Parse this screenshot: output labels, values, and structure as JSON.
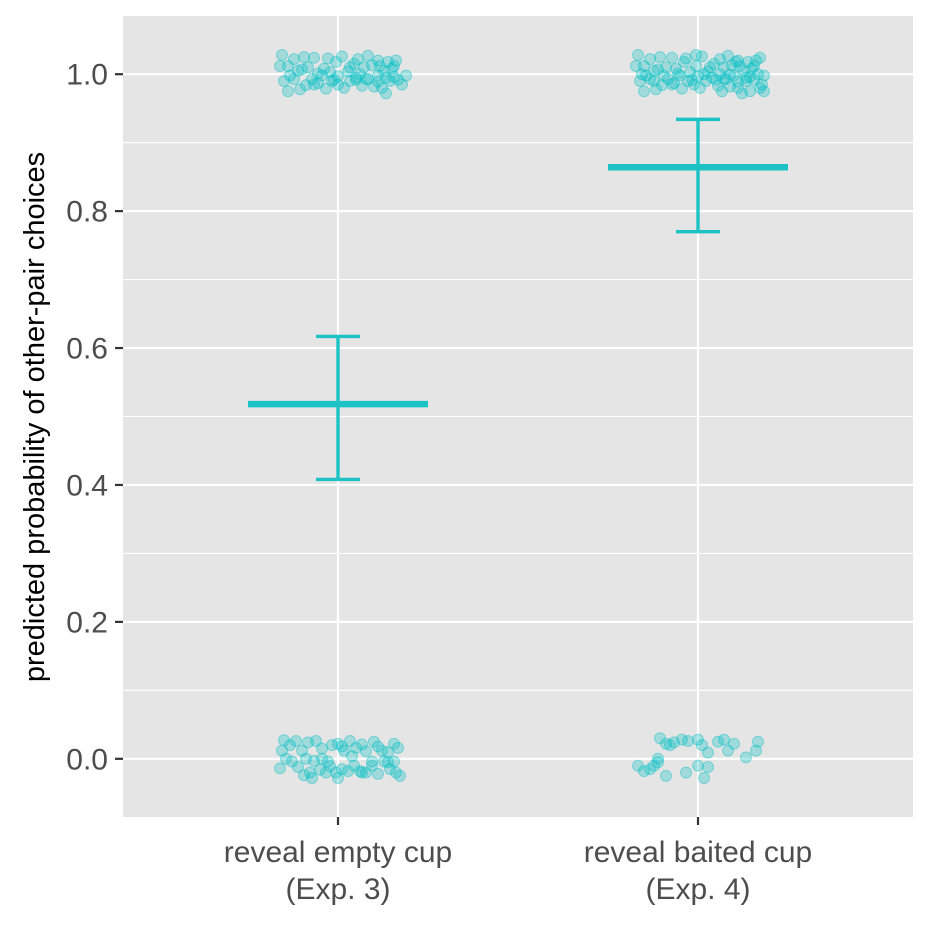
{
  "chart_data": {
    "type": "scatter",
    "title": "",
    "xlabel": "",
    "ylabel": "predicted probability of other-pair choices",
    "categories": [
      [
        "reveal empty cup",
        "(Exp. 3)"
      ],
      [
        "reveal baited cup",
        "(Exp. 4)"
      ]
    ],
    "ylim": [
      -0.085,
      1.085
    ],
    "yticks": [
      0.0,
      0.2,
      0.4,
      0.6,
      0.8,
      1.0
    ],
    "ytick_labels": [
      "0.0",
      "0.2",
      "0.4",
      "0.6",
      "0.8",
      "1.0"
    ],
    "grid": true,
    "legend": "none",
    "colors": {
      "point": "#00bfc4",
      "summary": "#1cc2c4",
      "panel": "#e5e5e5",
      "grid": "#ffffff"
    },
    "summary": [
      {
        "category": 0,
        "mean": 0.518,
        "lower": 0.408,
        "upper": 0.617
      },
      {
        "category": 1,
        "mean": 0.864,
        "lower": 0.77,
        "upper": 0.934
      }
    ],
    "points": [
      {
        "category": 0,
        "ones": [
          [
            -0.28,
            1.028
          ],
          [
            -0.25,
            1.012
          ],
          [
            -0.22,
            1.022
          ],
          [
            -0.2,
            1.005
          ],
          [
            -0.17,
            1.025
          ],
          [
            -0.15,
            1.01
          ],
          [
            -0.12,
            1.024
          ],
          [
            -0.1,
            1.001
          ],
          [
            -0.07,
            1.008
          ],
          [
            -0.04,
            1.003
          ],
          [
            -0.01,
            1.018
          ],
          [
            0.02,
            1.026
          ],
          [
            0.05,
            1.004
          ],
          [
            0.08,
            1.015
          ],
          [
            0.1,
            1.022
          ],
          [
            0.13,
            1.01
          ],
          [
            0.15,
            1.027
          ],
          [
            0.17,
            1.013
          ],
          [
            0.2,
            1.02
          ],
          [
            0.23,
            1.005
          ],
          [
            0.25,
            1.018
          ],
          [
            0.27,
            1.008
          ],
          [
            0.29,
            1.02
          ],
          [
            -0.27,
            0.99
          ],
          [
            -0.25,
            0.975
          ],
          [
            -0.22,
            0.993
          ],
          [
            -0.19,
            0.978
          ],
          [
            -0.16,
            0.984
          ],
          [
            -0.13,
            0.993
          ],
          [
            -0.1,
            0.987
          ],
          [
            -0.06,
            0.979
          ],
          [
            -0.03,
            0.99
          ],
          [
            0.0,
            0.985
          ],
          [
            0.03,
            0.98
          ],
          [
            0.06,
            0.99
          ],
          [
            0.09,
            0.995
          ],
          [
            0.12,
            0.983
          ],
          [
            0.15,
            0.993
          ],
          [
            0.18,
            0.982
          ],
          [
            0.2,
            0.998
          ],
          [
            0.22,
            0.98
          ],
          [
            0.24,
            0.972
          ],
          [
            0.26,
            0.99
          ],
          [
            0.28,
            0.996
          ],
          [
            0.3,
            0.992
          ],
          [
            -0.24,
            0.998
          ],
          [
            0.0,
            0.997
          ],
          [
            0.11,
            1.0
          ],
          [
            0.2,
            0.989
          ],
          [
            0.34,
            0.998
          ],
          [
            0.32,
            0.985
          ],
          [
            -0.18,
            1.007
          ],
          [
            -0.05,
            1.023
          ],
          [
            0.06,
            1.01
          ],
          [
            0.21,
            1.012
          ],
          [
            -0.29,
            1.012
          ],
          [
            -0.08,
            0.998
          ],
          [
            0.09,
            0.992
          ],
          [
            0.24,
            0.995
          ],
          [
            -0.12,
            0.985
          ],
          [
            -0.02,
            0.992
          ],
          [
            0.14,
            0.993
          ],
          [
            0.28,
            1.012
          ]
        ],
        "zeros": [
          [
            -0.28,
            0.012
          ],
          [
            -0.27,
            0.027
          ],
          [
            -0.24,
            0.02
          ],
          [
            -0.21,
            0.026
          ],
          [
            -0.18,
            0.012
          ],
          [
            -0.15,
            0.024
          ],
          [
            -0.11,
            0.026
          ],
          [
            -0.08,
            0.015
          ],
          [
            -0.03,
            0.02
          ],
          [
            0.0,
            0.022
          ],
          [
            0.03,
            0.012
          ],
          [
            0.06,
            0.026
          ],
          [
            0.09,
            0.016
          ],
          [
            0.12,
            0.021
          ],
          [
            0.14,
            0.011
          ],
          [
            0.18,
            0.025
          ],
          [
            0.2,
            0.018
          ],
          [
            0.22,
            0.012
          ],
          [
            0.25,
            0.01
          ],
          [
            0.28,
            0.022
          ],
          [
            0.3,
            0.016
          ],
          [
            -0.26,
            0.0
          ],
          [
            -0.23,
            -0.004
          ],
          [
            -0.2,
            -0.012
          ],
          [
            -0.17,
            -0.024
          ],
          [
            -0.14,
            -0.02
          ],
          [
            -0.12,
            -0.003
          ],
          [
            -0.09,
            -0.016
          ],
          [
            -0.06,
            -0.02
          ],
          [
            -0.04,
            -0.011
          ],
          [
            -0.01,
            -0.02
          ],
          [
            0.02,
            -0.015
          ],
          [
            0.05,
            -0.018
          ],
          [
            0.08,
            -0.01
          ],
          [
            0.11,
            -0.018
          ],
          [
            0.14,
            -0.02
          ],
          [
            0.17,
            -0.01
          ],
          [
            0.2,
            -0.022
          ],
          [
            0.23,
            -0.004
          ],
          [
            0.26,
            -0.015
          ],
          [
            0.29,
            -0.02
          ],
          [
            0.31,
            -0.025
          ],
          [
            -0.29,
            -0.014
          ],
          [
            -0.13,
            -0.028
          ],
          [
            0.0,
            -0.028
          ],
          [
            0.12,
            -0.02
          ],
          [
            0.25,
            -0.005
          ],
          [
            -0.16,
            0.0
          ],
          [
            -0.05,
            -0.004
          ],
          [
            0.07,
            0.004
          ],
          [
            0.17,
            -0.004
          ],
          [
            0.28,
            -0.004
          ],
          [
            -0.08,
            0.0
          ],
          [
            0.02,
            0.018
          ]
        ]
      },
      {
        "category": 1,
        "ones": [
          [
            -0.3,
            1.028
          ],
          [
            -0.27,
            1.012
          ],
          [
            -0.24,
            1.022
          ],
          [
            -0.22,
            1.005
          ],
          [
            -0.19,
            1.025
          ],
          [
            -0.16,
            1.01
          ],
          [
            -0.13,
            1.024
          ],
          [
            -0.1,
            1.001
          ],
          [
            -0.07,
            1.018
          ],
          [
            -0.04,
            1.003
          ],
          [
            -0.01,
            1.028
          ],
          [
            0.02,
            1.026
          ],
          [
            0.05,
            1.004
          ],
          [
            0.08,
            1.015
          ],
          [
            0.11,
            1.022
          ],
          [
            0.13,
            1.01
          ],
          [
            0.15,
            1.027
          ],
          [
            0.17,
            1.013
          ],
          [
            0.2,
            1.02
          ],
          [
            0.23,
            1.005
          ],
          [
            0.25,
            1.018
          ],
          [
            0.27,
            1.008
          ],
          [
            0.29,
            1.02
          ],
          [
            0.31,
            1.024
          ],
          [
            -0.29,
            0.99
          ],
          [
            -0.27,
            0.975
          ],
          [
            -0.24,
            0.993
          ],
          [
            -0.21,
            0.978
          ],
          [
            -0.18,
            0.984
          ],
          [
            -0.15,
            0.993
          ],
          [
            -0.12,
            0.987
          ],
          [
            -0.08,
            0.979
          ],
          [
            -0.05,
            0.99
          ],
          [
            -0.02,
            0.985
          ],
          [
            0.01,
            0.98
          ],
          [
            0.04,
            0.99
          ],
          [
            0.07,
            0.995
          ],
          [
            0.1,
            0.983
          ],
          [
            0.13,
            0.993
          ],
          [
            0.16,
            0.982
          ],
          [
            0.18,
            0.998
          ],
          [
            0.2,
            0.98
          ],
          [
            0.22,
            0.972
          ],
          [
            0.24,
            0.99
          ],
          [
            0.26,
            0.996
          ],
          [
            0.28,
            0.992
          ],
          [
            0.31,
            0.98
          ],
          [
            0.33,
            0.975
          ],
          [
            -0.26,
            0.998
          ],
          [
            0.0,
            0.997
          ],
          [
            0.11,
            1.0
          ],
          [
            0.2,
            0.989
          ],
          [
            0.33,
            0.998
          ],
          [
            0.32,
            0.985
          ],
          [
            -0.2,
            1.007
          ],
          [
            -0.06,
            1.023
          ],
          [
            0.06,
            1.01
          ],
          [
            0.21,
            1.012
          ],
          [
            -0.31,
            1.012
          ],
          [
            -0.09,
            0.998
          ],
          [
            0.09,
            0.992
          ],
          [
            0.24,
            0.995
          ],
          [
            -0.13,
            0.985
          ],
          [
            -0.03,
            0.992
          ],
          [
            0.14,
            0.993
          ],
          [
            0.28,
            1.012
          ],
          [
            -0.28,
            1.0
          ],
          [
            -0.11,
            1.008
          ],
          [
            0.03,
            1.0
          ],
          [
            0.16,
            1.0
          ],
          [
            0.3,
            1.0
          ],
          [
            -0.17,
            0.998
          ],
          [
            -0.01,
            1.012
          ],
          [
            0.19,
            1.018
          ],
          [
            0.26,
            0.975
          ],
          [
            -0.22,
            0.99
          ],
          [
            0.12,
            0.975
          ]
        ],
        "zeros": [
          [
            -0.19,
            0.03
          ],
          [
            -0.16,
            0.022
          ],
          [
            -0.12,
            0.024
          ],
          [
            -0.08,
            0.028
          ],
          [
            -0.05,
            0.026
          ],
          [
            0.02,
            0.02
          ],
          [
            0.1,
            0.025
          ],
          [
            0.18,
            0.022
          ],
          [
            0.3,
            0.025
          ],
          [
            -0.14,
            0.02
          ],
          [
            0.05,
            0.009
          ],
          [
            0.15,
            0.012
          ],
          [
            -0.3,
            -0.01
          ],
          [
            -0.27,
            -0.018
          ],
          [
            -0.24,
            -0.015
          ],
          [
            -0.22,
            -0.01
          ],
          [
            -0.2,
            -0.005
          ],
          [
            -0.16,
            -0.025
          ],
          [
            -0.06,
            -0.02
          ],
          [
            0.0,
            -0.01
          ],
          [
            0.03,
            -0.028
          ],
          [
            0.05,
            -0.012
          ],
          [
            0.24,
            0.002
          ],
          [
            0.29,
            0.012
          ],
          [
            0.0,
            0.028
          ],
          [
            -0.2,
            0.0
          ],
          [
            0.13,
            0.028
          ]
        ]
      }
    ]
  }
}
